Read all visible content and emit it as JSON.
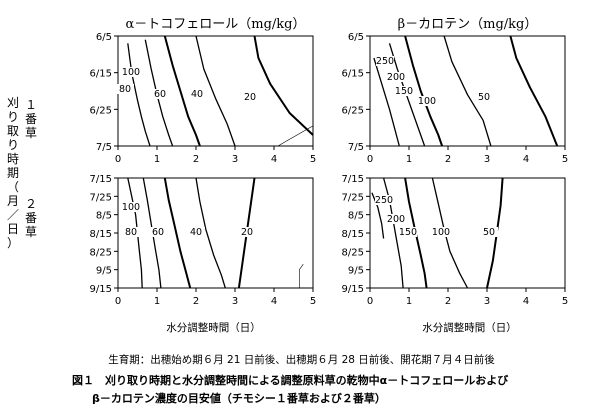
{
  "chart_data": [
    {
      "type": "contour",
      "title": "α－トコフェロール（mg/kg）",
      "panel": "1番草",
      "x": [
        0,
        1,
        2,
        3,
        4,
        5
      ],
      "y": [
        "6/5",
        "6/15",
        "6/25",
        "7/5"
      ],
      "xlim": [
        0,
        5
      ],
      "contour_labels": [
        "100",
        "80",
        "60",
        "40",
        "20"
      ],
      "contours": [
        {
          "level": 100,
          "points": [
            [
              0.25,
              0.2
            ],
            [
              0.35,
              1.0
            ],
            [
              0.5,
              1.75
            ],
            [
              0.6,
              2.2
            ],
            [
              0.7,
              2.6
            ],
            [
              0.82,
              3.0
            ]
          ]
        },
        {
          "level": 80,
          "points": [
            [
              0.7,
              0.1
            ],
            [
              0.85,
              0.9
            ],
            [
              1.0,
              1.6
            ],
            [
              1.15,
              2.2
            ],
            [
              1.3,
              2.7
            ],
            [
              1.4,
              3.0
            ]
          ]
        },
        {
          "level": 60,
          "points": [
            [
              1.2,
              0.0
            ],
            [
              1.4,
              0.8
            ],
            [
              1.6,
              1.5
            ],
            [
              1.8,
              2.2
            ],
            [
              2.0,
              2.7
            ],
            [
              2.1,
              3.0
            ]
          ]
        },
        {
          "level": 40,
          "points": [
            [
              2.0,
              0.0
            ],
            [
              2.2,
              0.9
            ],
            [
              2.5,
              1.7
            ],
            [
              2.8,
              2.4
            ],
            [
              3.0,
              3.0
            ]
          ]
        },
        {
          "level": 20,
          "points": [
            [
              3.5,
              0.0
            ],
            [
              3.6,
              0.6
            ],
            [
              3.9,
              1.3
            ],
            [
              4.4,
              2.1
            ],
            [
              5.0,
              2.7
            ]
          ]
        }
      ]
    },
    {
      "type": "contour",
      "title": "β－カロテン（mg/kg）",
      "panel": "1番草",
      "x": [
        0,
        1,
        2,
        3,
        4,
        5
      ],
      "y": [
        "6/5",
        "6/15",
        "6/25",
        "7/5"
      ],
      "xlim": [
        0,
        5
      ],
      "contour_labels": [
        "250",
        "200",
        "150",
        "100",
        "50"
      ],
      "contours": [
        {
          "level": 250,
          "points": [
            [
              0.1,
              0.6
            ],
            [
              0.3,
              1.3
            ],
            [
              0.5,
              2.0
            ],
            [
              0.65,
              2.6
            ],
            [
              0.75,
              3.0
            ]
          ]
        },
        {
          "level": 200,
          "points": [
            [
              0.5,
              0.2
            ],
            [
              0.7,
              0.9
            ],
            [
              0.9,
              1.5
            ],
            [
              1.1,
              2.1
            ],
            [
              1.3,
              2.7
            ],
            [
              1.4,
              3.0
            ]
          ]
        },
        {
          "level": 150,
          "points": [
            [
              0.9,
              0.0
            ],
            [
              1.1,
              0.8
            ],
            [
              1.3,
              1.5
            ],
            [
              1.55,
              2.2
            ],
            [
              1.75,
              2.7
            ],
            [
              1.85,
              3.0
            ]
          ]
        },
        {
          "level": 100,
          "points": [
            [
              1.9,
              0.0
            ],
            [
              2.1,
              0.7
            ],
            [
              2.5,
              1.6
            ],
            [
              2.9,
              2.3
            ],
            [
              3.1,
              3.0
            ]
          ]
        },
        {
          "level": 50,
          "points": [
            [
              3.6,
              0.0
            ],
            [
              3.75,
              0.6
            ],
            [
              4.1,
              1.4
            ],
            [
              4.5,
              2.2
            ],
            [
              4.8,
              3.0
            ]
          ]
        }
      ]
    },
    {
      "type": "contour",
      "panel": "2番草",
      "x": [
        0,
        1,
        2,
        3,
        4,
        5
      ],
      "y": [
        "7/15",
        "7/25",
        "8/5",
        "8/15",
        "8/25",
        "9/5",
        "9/15"
      ],
      "xlim": [
        0,
        5
      ],
      "contour_labels": [
        "100",
        "80",
        "60",
        "40",
        "20"
      ],
      "contours": [
        {
          "level": 100,
          "points": [
            [
              0.25,
              0.0
            ],
            [
              0.35,
              1.0
            ],
            [
              0.45,
              2.0
            ],
            [
              0.5,
              3.0
            ],
            [
              0.55,
              4.0
            ],
            [
              0.6,
              5.0
            ],
            [
              0.62,
              6.0
            ]
          ]
        },
        {
          "level": 80,
          "points": [
            [
              0.65,
              0.0
            ],
            [
              0.75,
              1.2
            ],
            [
              0.85,
              2.5
            ],
            [
              0.95,
              3.8
            ],
            [
              1.05,
              5.0
            ],
            [
              1.1,
              6.0
            ]
          ]
        },
        {
          "level": 60,
          "points": [
            [
              1.2,
              0.0
            ],
            [
              1.3,
              1.2
            ],
            [
              1.45,
              2.6
            ],
            [
              1.6,
              4.0
            ],
            [
              1.75,
              5.2
            ],
            [
              1.85,
              6.0
            ]
          ]
        },
        {
          "level": 40,
          "points": [
            [
              2.0,
              0.0
            ],
            [
              2.1,
              1.3
            ],
            [
              2.25,
              2.8
            ],
            [
              2.45,
              4.2
            ],
            [
              2.65,
              5.3
            ],
            [
              2.75,
              6.0
            ]
          ]
        },
        {
          "level": 20,
          "points": [
            [
              3.5,
              0.0
            ],
            [
              3.4,
              1.5
            ],
            [
              3.3,
              3.0
            ],
            [
              3.2,
              4.5
            ],
            [
              3.1,
              6.0
            ]
          ]
        }
      ]
    },
    {
      "type": "contour",
      "panel": "2番草",
      "x": [
        0,
        1,
        2,
        3,
        4,
        5
      ],
      "y": [
        "7/15",
        "7/25",
        "8/5",
        "8/15",
        "8/25",
        "9/5",
        "9/15"
      ],
      "xlim": [
        0,
        5
      ],
      "contour_labels": [
        "250",
        "200",
        "150",
        "100",
        "50"
      ],
      "contours": [
        {
          "level": 250,
          "points": [
            [
              0.05,
              0.8
            ],
            [
              0.2,
              1.6
            ],
            [
              0.3,
              2.5
            ],
            [
              0.35,
              3.3
            ]
          ]
        },
        {
          "level": 200,
          "points": [
            [
              0.35,
              0.0
            ],
            [
              0.5,
              1.2
            ],
            [
              0.6,
              2.4
            ],
            [
              0.7,
              3.6
            ],
            [
              0.8,
              4.8
            ],
            [
              0.85,
              6.0
            ]
          ]
        },
        {
          "level": 150,
          "points": [
            [
              0.9,
              0.0
            ],
            [
              1.0,
              1.3
            ],
            [
              1.15,
              2.8
            ],
            [
              1.3,
              4.2
            ],
            [
              1.4,
              5.2
            ],
            [
              1.45,
              6.0
            ]
          ]
        },
        {
          "level": 100,
          "points": [
            [
              1.6,
              0.0
            ],
            [
              1.75,
              1.4
            ],
            [
              1.9,
              2.8
            ],
            [
              2.05,
              4.0
            ],
            [
              2.3,
              5.2
            ],
            [
              2.5,
              6.0
            ]
          ]
        },
        {
          "level": 50,
          "points": [
            [
              3.4,
              0.0
            ],
            [
              3.35,
              1.5
            ],
            [
              3.25,
              3.0
            ],
            [
              3.15,
              4.5
            ],
            [
              3.0,
              6.0
            ]
          ]
        }
      ]
    }
  ],
  "labels": {
    "cut1": "１番草",
    "cut2": "２番草",
    "ylabel": "刈り取り時期（月／日）",
    "xlabel": "水分調整時間（日）",
    "note": "生育期：出穂始め期６月 21 日前後、出穂期６月 28 日前後、開花期７月４日前後",
    "caption1": "図１　刈り取り時期と水分調整時間による調整原料草の乾物中α－トコフェロールおよび",
    "caption2": "β－カロテン濃度の目安値（チモシー１番草および２番草）"
  }
}
